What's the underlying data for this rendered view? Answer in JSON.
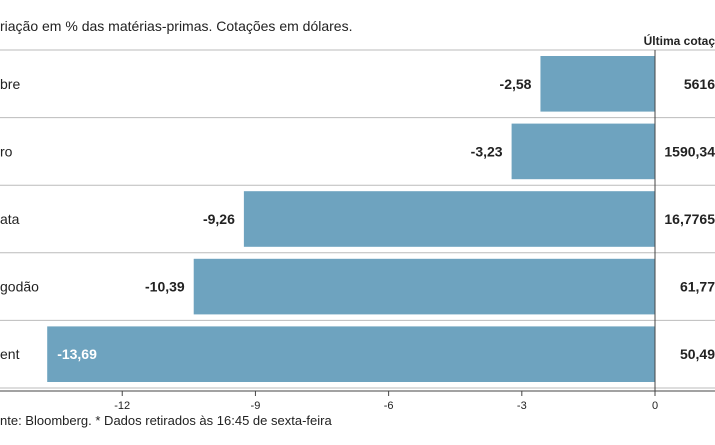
{
  "chart_data": {
    "type": "bar",
    "orientation": "horizontal",
    "title": "riação em % das matérias-primas. Cotações em dólares.",
    "value_column_header": "Última cotaç",
    "categories": [
      "bre",
      "ro",
      "ata",
      "godão",
      "ent"
    ],
    "values": [
      -2.58,
      -3.23,
      -9.26,
      -10.39,
      -13.69
    ],
    "value_labels": [
      "-2,58",
      "-3,23",
      "-9,26",
      "-10,39",
      "-13,69"
    ],
    "last_quotes": [
      "5616",
      "1590,34",
      "16,7765",
      "61,77",
      "50,49"
    ],
    "xlim": [
      -14.1,
      0
    ],
    "xticks": [
      -12,
      -9,
      -6,
      -3,
      0
    ],
    "xtick_labels": [
      "-12",
      "-9",
      "-6",
      "-3",
      "0"
    ],
    "footnote": "nte: Bloomberg.  * Dados retirados às 16:45 de sexta-feira",
    "colors": {
      "bar": "#6ea3bf",
      "row_line": "#bbbbbb",
      "text": "#222222",
      "axis": "#444444",
      "inside_label": "#ffffff"
    }
  }
}
